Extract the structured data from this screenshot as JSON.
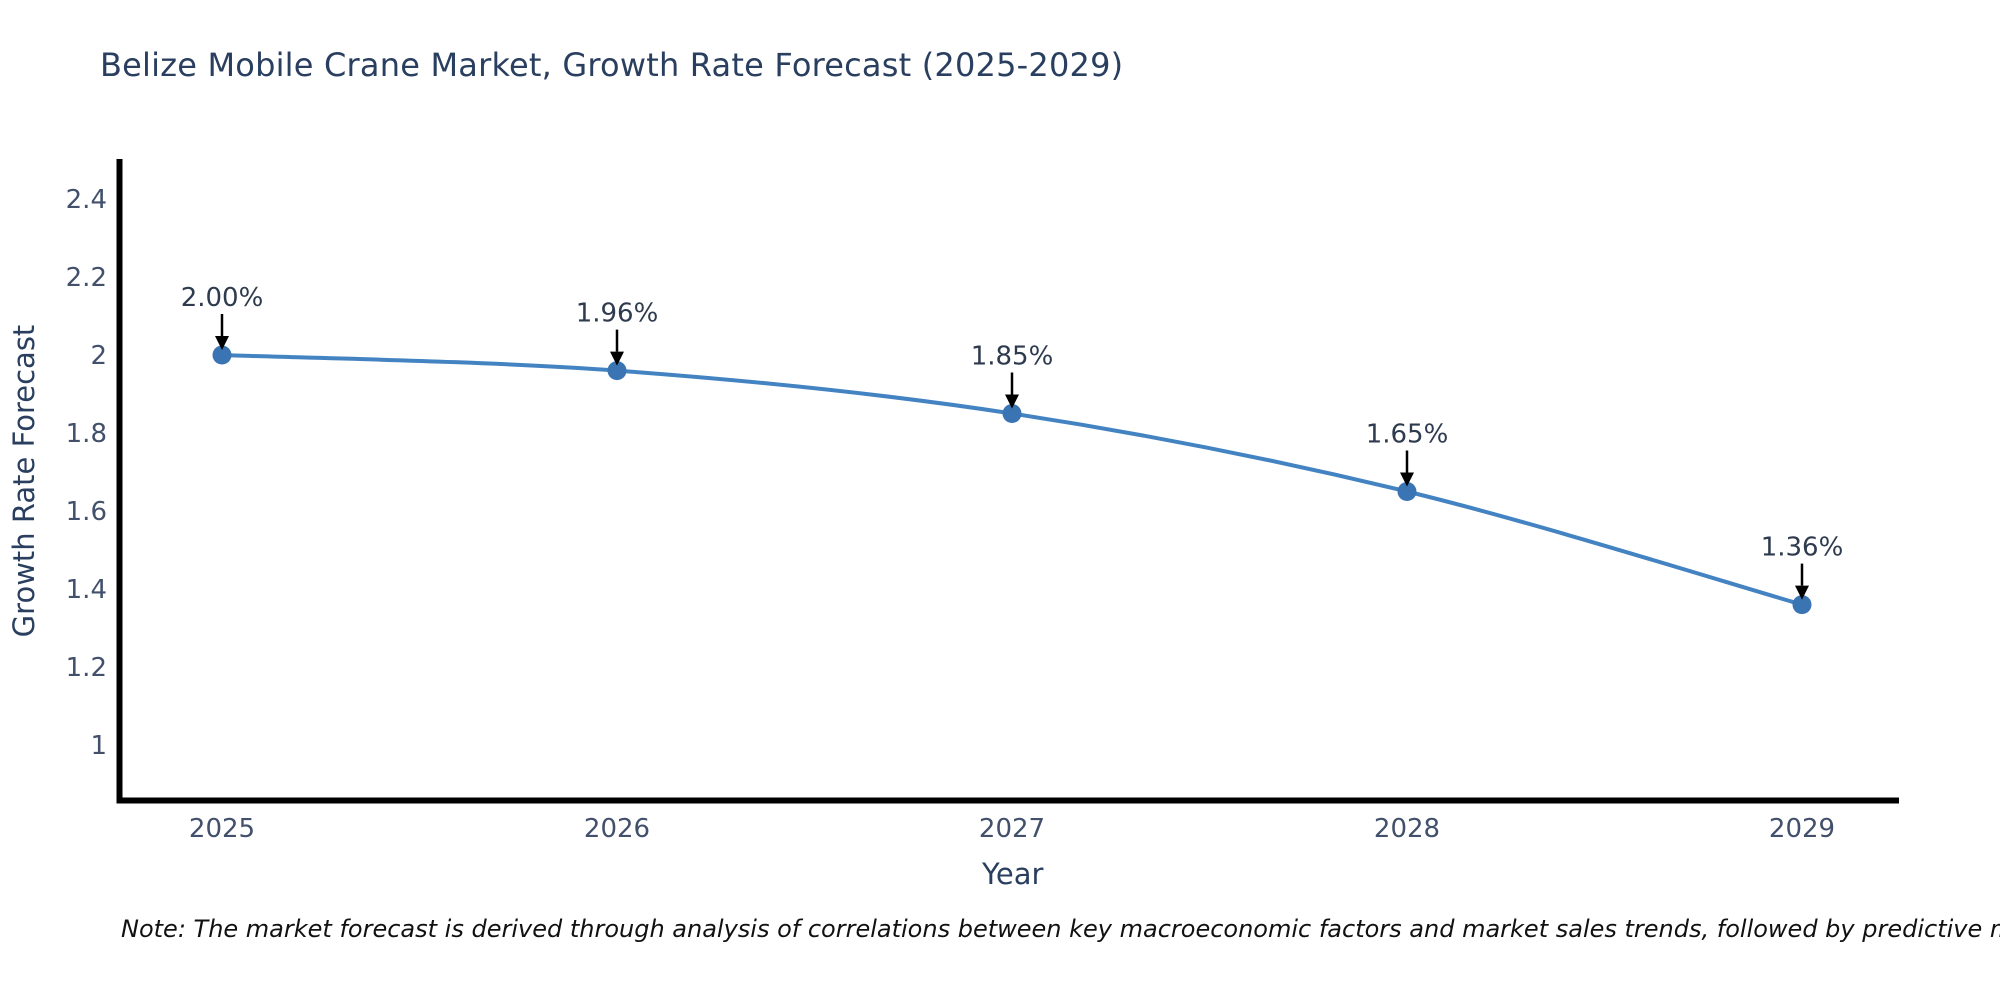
{
  "title": "Belize Mobile Crane Market, Growth Rate Forecast (2025-2029)",
  "note": {
    "text": "Note: The market forecast is derived through analysis of correlations between key macroeconomic factors and market sales trends, followed by predictive modeling to project future sales"
  },
  "chart_data": {
    "type": "line",
    "title": "Belize Mobile Crane Market, Growth Rate Forecast (2025-2029)",
    "x": [
      2025,
      2026,
      2027,
      2028,
      2029
    ],
    "series": [
      {
        "name": "Growth Rate Forecast",
        "values": [
          2.0,
          1.96,
          1.85,
          1.65,
          1.36
        ]
      }
    ],
    "point_labels": [
      "2.00%",
      "1.96%",
      "1.85%",
      "1.65%",
      "1.36%"
    ],
    "xlabel": "Year",
    "ylabel": "Growth Rate Forecast",
    "x_tick_labels": [
      "2025",
      "2026",
      "2027",
      "2028",
      "2029"
    ],
    "y_ticks": [
      1,
      1.2,
      1.4,
      1.6,
      1.8,
      2,
      2.2,
      2.4
    ],
    "ylim": [
      0.85,
      2.5
    ],
    "xlim": [
      2024.73,
      2029.25
    ],
    "grid": false,
    "legend": false,
    "line_smoothing": "spline",
    "line_color": "#4383c2",
    "marker_color": "#3a74b2",
    "axis_color": "#000000",
    "arrow_color": "#000000",
    "annotation_color": "#2e3a4e",
    "tick_color": "#42506b",
    "axis_title_color": "#2a3f5f",
    "title_color": "#2a3f5f",
    "background_color": "#ffffff"
  }
}
